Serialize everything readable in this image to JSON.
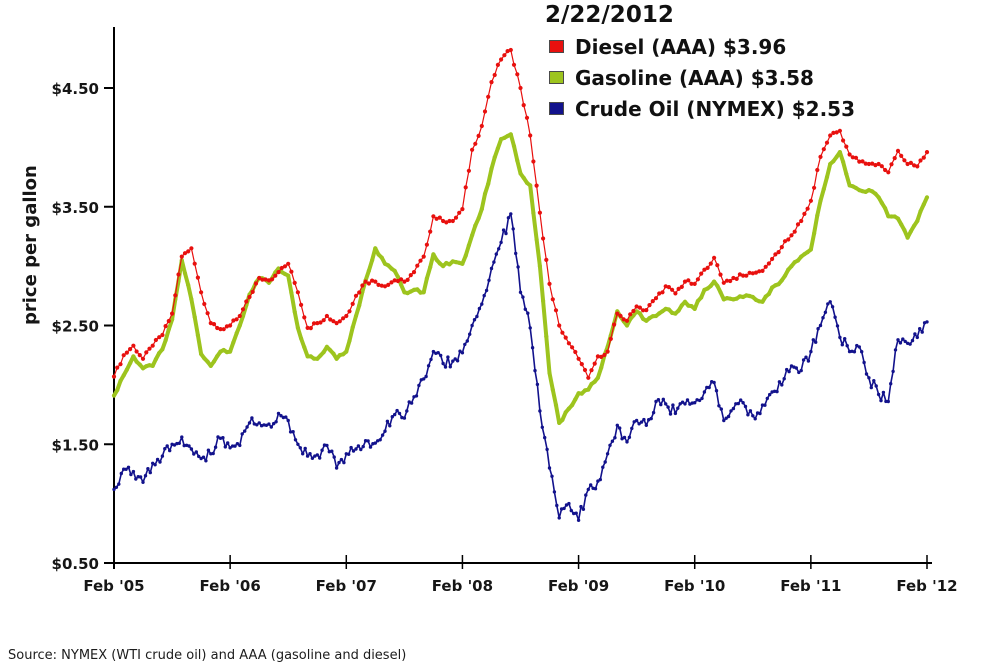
{
  "page": {
    "background": "#ffffff"
  },
  "legend": {
    "title": "2/22/2012",
    "items": [
      {
        "label": "Diesel (AAA) $3.96",
        "color": "#e8100e"
      },
      {
        "label": "Gasoline (AAA) $3.58",
        "color": "#9dc41e"
      },
      {
        "label": "Crude Oil (NYMEX) $2.53",
        "color": "#12128c"
      }
    ]
  },
  "source_note": "Source: NYMEX (WTI crude oil) and AAA (gasoline and diesel)",
  "chart_data": {
    "type": "line",
    "title": "2/22/2012",
    "xlabel": "",
    "ylabel": "price per gallon",
    "grid": false,
    "legend_position": "top-right",
    "x_interval": "monthly",
    "x_range": [
      "Feb 2005",
      "Feb 2012"
    ],
    "x_tick_labels": [
      "Feb '05",
      "Feb '06",
      "Feb '07",
      "Feb '08",
      "Feb '09",
      "Feb '10",
      "Feb '11",
      "Feb '12"
    ],
    "y_ticks": [
      0.5,
      1.5,
      2.5,
      3.5,
      4.5
    ],
    "y_tick_labels": [
      "$0.50",
      "$1.50",
      "$2.50",
      "$3.50",
      "$4.50"
    ],
    "ylim": [
      0.5,
      4.95
    ],
    "series": [
      {
        "name": "Diesel (AAA)",
        "current_value": 3.96,
        "color": "#e8100e",
        "style": "dotted-line",
        "values": [
          2.07,
          2.25,
          2.33,
          2.22,
          2.33,
          2.42,
          2.6,
          3.08,
          3.15,
          2.78,
          2.52,
          2.47,
          2.5,
          2.58,
          2.74,
          2.9,
          2.88,
          2.95,
          3.02,
          2.78,
          2.48,
          2.52,
          2.58,
          2.52,
          2.58,
          2.75,
          2.87,
          2.87,
          2.83,
          2.88,
          2.87,
          2.95,
          3.08,
          3.42,
          3.38,
          3.38,
          3.48,
          3.98,
          4.18,
          4.55,
          4.74,
          4.82,
          4.5,
          4.1,
          3.45,
          2.85,
          2.5,
          2.35,
          2.22,
          2.06,
          2.24,
          2.28,
          2.6,
          2.54,
          2.66,
          2.63,
          2.73,
          2.83,
          2.77,
          2.87,
          2.85,
          2.97,
          3.07,
          2.86,
          2.9,
          2.92,
          2.94,
          2.96,
          3.06,
          3.16,
          3.26,
          3.38,
          3.55,
          3.92,
          4.1,
          4.14,
          3.94,
          3.88,
          3.86,
          3.86,
          3.79,
          3.97,
          3.86,
          3.84,
          3.96
        ]
      },
      {
        "name": "Gasoline (AAA)",
        "current_value": 3.58,
        "color": "#9dc41e",
        "style": "thick-line",
        "values": [
          1.91,
          2.08,
          2.24,
          2.14,
          2.16,
          2.3,
          2.55,
          3.05,
          2.72,
          2.26,
          2.16,
          2.28,
          2.28,
          2.5,
          2.76,
          2.9,
          2.86,
          2.98,
          2.92,
          2.48,
          2.24,
          2.22,
          2.32,
          2.22,
          2.28,
          2.58,
          2.88,
          3.15,
          3.02,
          2.96,
          2.78,
          2.8,
          2.78,
          3.1,
          3.0,
          3.04,
          3.02,
          3.26,
          3.48,
          3.82,
          4.07,
          4.11,
          3.78,
          3.68,
          3.0,
          2.1,
          1.68,
          1.8,
          1.93,
          1.96,
          2.06,
          2.32,
          2.62,
          2.5,
          2.62,
          2.54,
          2.58,
          2.64,
          2.6,
          2.7,
          2.64,
          2.8,
          2.87,
          2.72,
          2.72,
          2.74,
          2.74,
          2.7,
          2.82,
          2.88,
          3.0,
          3.08,
          3.14,
          3.55,
          3.86,
          3.96,
          3.68,
          3.64,
          3.64,
          3.58,
          3.42,
          3.4,
          3.24,
          3.38,
          3.58
        ]
      },
      {
        "name": "Crude Oil (NYMEX)",
        "current_value": 2.53,
        "color": "#12128c",
        "style": "dotted-line",
        "values": [
          1.12,
          1.29,
          1.27,
          1.18,
          1.34,
          1.4,
          1.5,
          1.56,
          1.46,
          1.38,
          1.42,
          1.55,
          1.47,
          1.49,
          1.68,
          1.68,
          1.67,
          1.76,
          1.7,
          1.5,
          1.4,
          1.41,
          1.49,
          1.3,
          1.42,
          1.46,
          1.53,
          1.51,
          1.61,
          1.75,
          1.72,
          1.9,
          2.05,
          2.28,
          2.18,
          2.2,
          2.27,
          2.5,
          2.68,
          2.98,
          3.2,
          3.44,
          2.78,
          2.48,
          1.78,
          1.3,
          0.88,
          1.0,
          0.86,
          1.12,
          1.19,
          1.42,
          1.66,
          1.52,
          1.7,
          1.66,
          1.86,
          1.84,
          1.76,
          1.84,
          1.85,
          1.94,
          2.02,
          1.7,
          1.8,
          1.85,
          1.74,
          1.83,
          1.94,
          2.0,
          2.16,
          2.12,
          2.28,
          2.5,
          2.7,
          2.4,
          2.28,
          2.32,
          2.06,
          1.92,
          1.86,
          2.38,
          2.35,
          2.4,
          2.53
        ]
      }
    ]
  }
}
